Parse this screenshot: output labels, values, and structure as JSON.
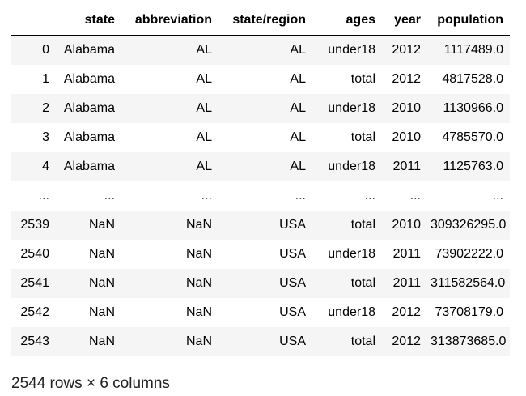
{
  "table": {
    "columns": [
      "",
      "state",
      "abbreviation",
      "state/region",
      "ages",
      "year",
      "population"
    ],
    "rows": [
      [
        "0",
        "Alabama",
        "AL",
        "AL",
        "under18",
        "2012",
        "1117489.0"
      ],
      [
        "1",
        "Alabama",
        "AL",
        "AL",
        "total",
        "2012",
        "4817528.0"
      ],
      [
        "2",
        "Alabama",
        "AL",
        "AL",
        "under18",
        "2010",
        "1130966.0"
      ],
      [
        "3",
        "Alabama",
        "AL",
        "AL",
        "total",
        "2010",
        "4785570.0"
      ],
      [
        "4",
        "Alabama",
        "AL",
        "AL",
        "under18",
        "2011",
        "1125763.0"
      ],
      [
        "...",
        "...",
        "...",
        "...",
        "...",
        "...",
        "..."
      ],
      [
        "2539",
        "NaN",
        "NaN",
        "USA",
        "total",
        "2010",
        "309326295.0"
      ],
      [
        "2540",
        "NaN",
        "NaN",
        "USA",
        "under18",
        "2011",
        "73902222.0"
      ],
      [
        "2541",
        "NaN",
        "NaN",
        "USA",
        "total",
        "2011",
        "311582564.0"
      ],
      [
        "2542",
        "NaN",
        "NaN",
        "USA",
        "under18",
        "2012",
        "73708179.0"
      ],
      [
        "2543",
        "NaN",
        "NaN",
        "USA",
        "total",
        "2012",
        "313873685.0"
      ]
    ]
  },
  "caption": "2544 rows × 6 columns"
}
